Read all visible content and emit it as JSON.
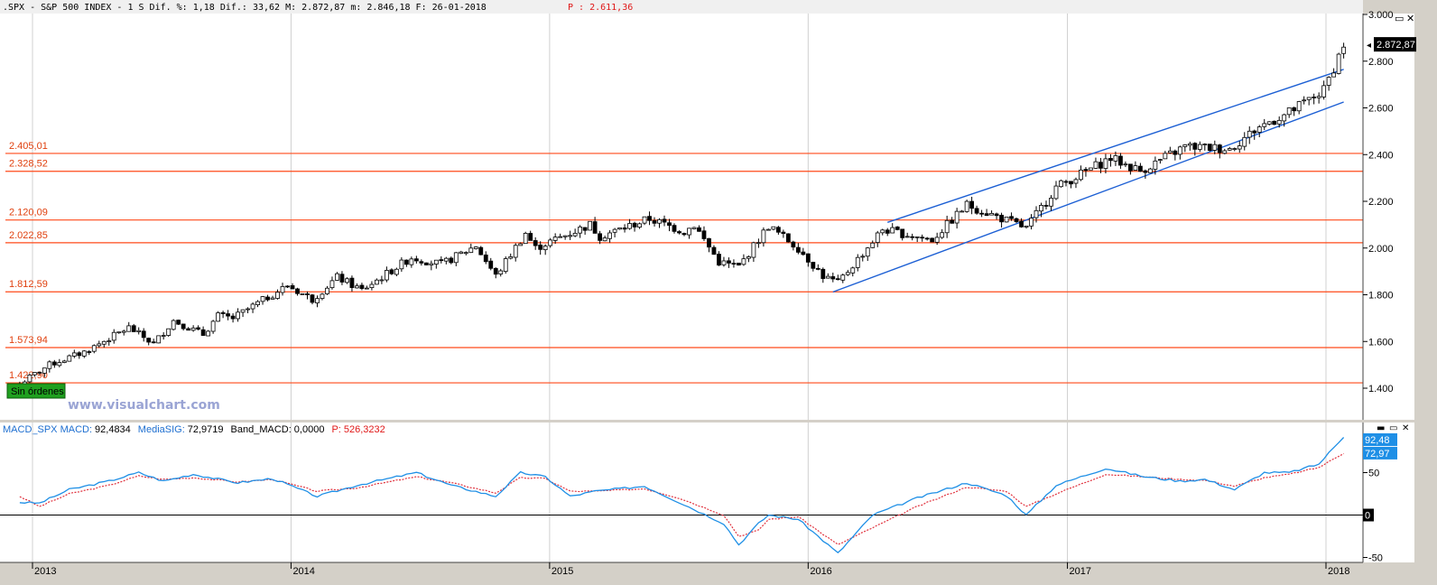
{
  "header": {
    "main": ".SPX - S&P 500 INDEX -  1 S Dif. %: 1,18 Dif.: 33,62 M: 2.872,87 m: 2.846,18 F: 26-01-2018",
    "p": "P : 2.611,36"
  },
  "watermark": "www.visualchart.com",
  "order_badge": "Sin órdenes",
  "colors": {
    "fib_line": "#ff4a1a",
    "channel": "#1c5fd4",
    "macd": "#1e8fe6",
    "signal": "#e0303c",
    "badge": "#1fa01f"
  },
  "chart_data": [
    {
      "type": "candlestick",
      "title": "",
      "ylim": [
        1320,
        3000
      ],
      "yticks": [
        "3.000",
        "2.800",
        "2.600",
        "2.400",
        "2.200",
        "2.000",
        "1.800",
        "1.600",
        "1.400"
      ],
      "price_badge": "2.872,87",
      "fib_levels": [
        {
          "value": 2405.01,
          "label": "2.405,01"
        },
        {
          "value": 2328.52,
          "label": "2.328,52"
        },
        {
          "value": 2120.09,
          "label": "2.120,09"
        },
        {
          "value": 2022.85,
          "label": "2.022,85"
        },
        {
          "value": 1812.59,
          "label": "1.812,59"
        },
        {
          "value": 1573.94,
          "label": "1.573,94"
        },
        {
          "value": 1422.9,
          "label": "1.422,90"
        }
      ],
      "channel": [
        {
          "from": [
            "2016-02-05",
            1812
          ],
          "to": [
            "2018-01-26",
            2625
          ]
        },
        {
          "from": [
            "2016-04-22",
            2110
          ],
          "to": [
            "2018-01-26",
            2765
          ]
        }
      ],
      "anchors": [
        [
          "2012-12-14",
          1420
        ],
        [
          "2013-01-25",
          1500
        ],
        [
          "2013-03-15",
          1555
        ],
        [
          "2013-05-17",
          1660
        ],
        [
          "2013-06-21",
          1590
        ],
        [
          "2013-07-19",
          1690
        ],
        [
          "2013-08-30",
          1630
        ],
        [
          "2013-09-20",
          1710
        ],
        [
          "2013-10-11",
          1700
        ],
        [
          "2013-12-27",
          1840
        ],
        [
          "2014-01-31",
          1780
        ],
        [
          "2014-03-07",
          1875
        ],
        [
          "2014-04-11",
          1820
        ],
        [
          "2014-06-20",
          1960
        ],
        [
          "2014-08-01",
          1930
        ],
        [
          "2014-09-19",
          2010
        ],
        [
          "2014-10-17",
          1880
        ],
        [
          "2014-11-28",
          2065
        ],
        [
          "2014-12-12",
          2000
        ],
        [
          "2015-02-27",
          2100
        ],
        [
          "2015-03-13",
          2050
        ],
        [
          "2015-05-22",
          2125
        ],
        [
          "2015-07-10",
          2070
        ],
        [
          "2015-07-24",
          2100
        ],
        [
          "2015-08-28",
          1940
        ],
        [
          "2015-09-25",
          1920
        ],
        [
          "2015-11-06",
          2095
        ],
        [
          "2015-12-18",
          2000
        ],
        [
          "2016-01-22",
          1880
        ],
        [
          "2016-02-12",
          1850
        ],
        [
          "2016-04-15",
          2080
        ],
        [
          "2016-06-24",
          2035
        ],
        [
          "2016-08-12",
          2185
        ],
        [
          "2016-11-04",
          2085
        ],
        [
          "2016-12-16",
          2260
        ],
        [
          "2017-03-03",
          2385
        ],
        [
          "2017-04-14",
          2330
        ],
        [
          "2017-06-16",
          2435
        ],
        [
          "2017-08-18",
          2425
        ],
        [
          "2017-09-29",
          2520
        ],
        [
          "2017-11-10",
          2580
        ],
        [
          "2017-12-29",
          2675
        ],
        [
          "2018-01-26",
          2872
        ]
      ]
    },
    {
      "type": "line",
      "title": "",
      "header_items": [
        {
          "label": "MACD_SPX MACD:",
          "value": "92,4834",
          "color": "macd"
        },
        {
          "label": "MediaSIG:",
          "value": "72,9719",
          "color": "signal"
        },
        {
          "label": "Band_MACD:",
          "value": "0,0000",
          "color": "plain"
        },
        {
          "label": "P:",
          "value": "526,3232",
          "color": "p"
        }
      ],
      "ylim": [
        -55,
        115
      ],
      "yticks": [
        "50",
        "0",
        "-50"
      ],
      "badges": [
        {
          "label": "92,48",
          "value": 92.48
        },
        {
          "label": "72,97",
          "value": 72.97
        },
        {
          "label": "0",
          "value": 0
        }
      ],
      "series": [
        {
          "name": "MACD",
          "anchors": [
            [
              "2012-12-14",
              15
            ],
            [
              "2013-01-11",
              14
            ],
            [
              "2013-02-22",
              30
            ],
            [
              "2013-04-19",
              40
            ],
            [
              "2013-05-31",
              50
            ],
            [
              "2013-07-05",
              40
            ],
            [
              "2013-08-16",
              48
            ],
            [
              "2013-10-18",
              38
            ],
            [
              "2013-12-06",
              43
            ],
            [
              "2014-02-07",
              22
            ],
            [
              "2014-04-04",
              35
            ],
            [
              "2014-06-27",
              50
            ],
            [
              "2014-08-15",
              35
            ],
            [
              "2014-10-17",
              22
            ],
            [
              "2014-11-21",
              50
            ],
            [
              "2014-12-26",
              45
            ],
            [
              "2015-01-30",
              22
            ],
            [
              "2015-03-06",
              28
            ],
            [
              "2015-05-15",
              34
            ],
            [
              "2015-07-03",
              15
            ],
            [
              "2015-09-04",
              -10
            ],
            [
              "2015-09-25",
              -35
            ],
            [
              "2015-10-23",
              -10
            ],
            [
              "2015-11-06",
              0
            ],
            [
              "2015-12-18",
              -5
            ],
            [
              "2016-02-12",
              -45
            ],
            [
              "2016-04-01",
              0
            ],
            [
              "2016-06-03",
              20
            ],
            [
              "2016-08-12",
              38
            ],
            [
              "2016-10-07",
              23
            ],
            [
              "2016-11-04",
              0
            ],
            [
              "2016-12-16",
              35
            ],
            [
              "2017-02-24",
              55
            ],
            [
              "2017-04-21",
              45
            ],
            [
              "2017-06-09",
              40
            ],
            [
              "2017-07-14",
              42
            ],
            [
              "2017-08-25",
              30
            ],
            [
              "2017-10-06",
              50
            ],
            [
              "2017-11-10",
              50
            ],
            [
              "2017-12-22",
              60
            ],
            [
              "2018-01-26",
              92.48
            ]
          ]
        },
        {
          "name": "MediaSIG",
          "anchors": [
            [
              "2012-12-14",
              22
            ],
            [
              "2013-01-11",
              10
            ],
            [
              "2013-02-22",
              25
            ],
            [
              "2013-04-19",
              35
            ],
            [
              "2013-05-31",
              46
            ],
            [
              "2013-07-05",
              42
            ],
            [
              "2013-08-16",
              44
            ],
            [
              "2013-10-18",
              39
            ],
            [
              "2013-12-06",
              42
            ],
            [
              "2014-02-07",
              28
            ],
            [
              "2014-04-04",
              32
            ],
            [
              "2014-06-27",
              45
            ],
            [
              "2014-08-15",
              38
            ],
            [
              "2014-10-17",
              26
            ],
            [
              "2014-11-21",
              44
            ],
            [
              "2014-12-26",
              43
            ],
            [
              "2015-01-30",
              28
            ],
            [
              "2015-03-06",
              28
            ],
            [
              "2015-05-15",
              31
            ],
            [
              "2015-07-03",
              20
            ],
            [
              "2015-09-04",
              0
            ],
            [
              "2015-09-25",
              -25
            ],
            [
              "2015-10-23",
              -18
            ],
            [
              "2015-11-06",
              -5
            ],
            [
              "2015-12-18",
              -2
            ],
            [
              "2016-02-12",
              -35
            ],
            [
              "2016-04-01",
              -15
            ],
            [
              "2016-06-03",
              10
            ],
            [
              "2016-08-12",
              33
            ],
            [
              "2016-10-07",
              28
            ],
            [
              "2016-11-04",
              10
            ],
            [
              "2016-12-16",
              25
            ],
            [
              "2017-02-24",
              48
            ],
            [
              "2017-04-21",
              45
            ],
            [
              "2017-06-09",
              42
            ],
            [
              "2017-07-14",
              41
            ],
            [
              "2017-08-25",
              34
            ],
            [
              "2017-10-06",
              44
            ],
            [
              "2017-11-10",
              48
            ],
            [
              "2017-12-22",
              56
            ],
            [
              "2018-01-26",
              72.97
            ]
          ]
        }
      ]
    }
  ],
  "x_axis": {
    "years": [
      "2013",
      "2014",
      "2015",
      "2016",
      "2017",
      "2018"
    ],
    "dates": [
      "2013-01-01",
      "2014-01-01",
      "2015-01-01",
      "2016-01-01",
      "2017-01-01",
      "2018-01-01"
    ]
  }
}
